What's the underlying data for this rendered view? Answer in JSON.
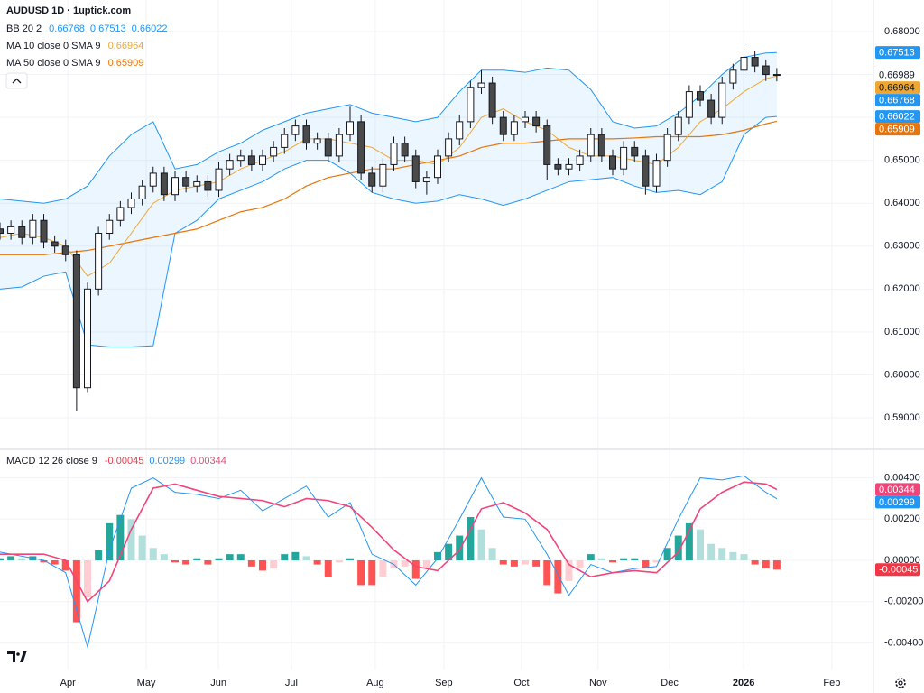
{
  "chart_data": {
    "type": "candlestick",
    "title": "AUDUSD 1D · 1uptick.com",
    "x": [
      0,
      3,
      6,
      9,
      12,
      15,
      18,
      21,
      24,
      27,
      30,
      33,
      36,
      39,
      42,
      45,
      48,
      51,
      54,
      57,
      60,
      63,
      66,
      69,
      72,
      75,
      78,
      81,
      84,
      87,
      90,
      93,
      96,
      99,
      102,
      105,
      108,
      111,
      114,
      117,
      120,
      123,
      126,
      129,
      132,
      135,
      138,
      141,
      144,
      147,
      150,
      153,
      156,
      159,
      162,
      165,
      168,
      171,
      174,
      177,
      180,
      183,
      186,
      189,
      192,
      195,
      198,
      201,
      204,
      207,
      210,
      213
    ],
    "open": [
      0.634,
      0.633,
      0.6345,
      0.632,
      0.636,
      0.631,
      0.63,
      0.628,
      0.597,
      0.62,
      0.633,
      0.636,
      0.639,
      0.641,
      0.644,
      0.647,
      0.642,
      0.646,
      0.644,
      0.645,
      0.643,
      0.648,
      0.65,
      0.651,
      0.649,
      0.651,
      0.653,
      0.656,
      0.658,
      0.654,
      0.655,
      0.651,
      0.656,
      0.659,
      0.647,
      0.644,
      0.649,
      0.654,
      0.651,
      0.645,
      0.646,
      0.651,
      0.655,
      0.659,
      0.667,
      0.668,
      0.66,
      0.656,
      0.659,
      0.66,
      0.658,
      0.649,
      0.648,
      0.649,
      0.651,
      0.656,
      0.651,
      0.648,
      0.653,
      0.651,
      0.644,
      0.65,
      0.656,
      0.66,
      0.666,
      0.664,
      0.66,
      0.668,
      0.671,
      0.674,
      0.672,
      0.67
    ],
    "high": [
      0.6355,
      0.636,
      0.636,
      0.6375,
      0.6375,
      0.6325,
      0.6315,
      0.629,
      0.6215,
      0.6345,
      0.6375,
      0.6405,
      0.6425,
      0.6455,
      0.6485,
      0.6485,
      0.6475,
      0.6475,
      0.6465,
      0.6465,
      0.6495,
      0.6515,
      0.6525,
      0.6525,
      0.6525,
      0.6545,
      0.6575,
      0.6595,
      0.6595,
      0.6565,
      0.6565,
      0.6575,
      0.6625,
      0.6605,
      0.6485,
      0.6505,
      0.6555,
      0.6555,
      0.6525,
      0.6475,
      0.6525,
      0.6565,
      0.6605,
      0.6685,
      0.671,
      0.6695,
      0.6615,
      0.6605,
      0.6615,
      0.6615,
      0.6595,
      0.6505,
      0.6505,
      0.6525,
      0.6575,
      0.6575,
      0.6525,
      0.6545,
      0.6545,
      0.6525,
      0.6515,
      0.6575,
      0.6615,
      0.6675,
      0.6675,
      0.6655,
      0.6695,
      0.6725,
      0.676,
      0.6755,
      0.6735,
      0.6715
    ],
    "low": [
      0.6315,
      0.6315,
      0.6305,
      0.6305,
      0.6295,
      0.6285,
      0.6265,
      0.5915,
      0.596,
      0.6185,
      0.6315,
      0.6345,
      0.6375,
      0.6395,
      0.6425,
      0.6405,
      0.6405,
      0.6425,
      0.6425,
      0.6415,
      0.6415,
      0.6465,
      0.6485,
      0.6475,
      0.6475,
      0.6495,
      0.6515,
      0.6545,
      0.6525,
      0.6525,
      0.6495,
      0.6495,
      0.6545,
      0.6455,
      0.6425,
      0.6425,
      0.6475,
      0.6495,
      0.6435,
      0.642,
      0.6445,
      0.6495,
      0.6535,
      0.6575,
      0.6655,
      0.6585,
      0.6545,
      0.6545,
      0.6575,
      0.6565,
      0.6455,
      0.6465,
      0.6465,
      0.6475,
      0.6495,
      0.6495,
      0.6465,
      0.6465,
      0.6495,
      0.642,
      0.6425,
      0.6485,
      0.6545,
      0.6585,
      0.6625,
      0.6585,
      0.6585,
      0.6665,
      0.6695,
      0.6705,
      0.6685,
      0.6684
    ],
    "close": [
      0.633,
      0.6345,
      0.632,
      0.636,
      0.631,
      0.63,
      0.628,
      0.597,
      0.62,
      0.633,
      0.636,
      0.639,
      0.641,
      0.644,
      0.647,
      0.642,
      0.646,
      0.644,
      0.645,
      0.643,
      0.648,
      0.65,
      0.651,
      0.649,
      0.651,
      0.653,
      0.656,
      0.658,
      0.654,
      0.655,
      0.651,
      0.656,
      0.659,
      0.647,
      0.644,
      0.649,
      0.654,
      0.651,
      0.645,
      0.646,
      0.651,
      0.655,
      0.659,
      0.667,
      0.668,
      0.66,
      0.656,
      0.659,
      0.66,
      0.658,
      0.649,
      0.648,
      0.649,
      0.651,
      0.656,
      0.651,
      0.648,
      0.653,
      0.651,
      0.644,
      0.65,
      0.656,
      0.66,
      0.666,
      0.664,
      0.66,
      0.668,
      0.671,
      0.674,
      0.672,
      0.67,
      0.6699
    ],
    "last_price": 0.66989,
    "xlim": [
      0,
      240
    ],
    "xticks": [
      {
        "value": 18.6,
        "label": "Apr"
      },
      {
        "value": 40.1,
        "label": "May"
      },
      {
        "value": 59.9,
        "label": "Jun"
      },
      {
        "value": 79.9,
        "label": "Jul"
      },
      {
        "value": 102.9,
        "label": "Aug"
      },
      {
        "value": 121.7,
        "label": "Sep"
      },
      {
        "value": 143,
        "label": "Oct"
      },
      {
        "value": 164,
        "label": "Nov"
      },
      {
        "value": 183.6,
        "label": "Dec"
      },
      {
        "value": 203.9,
        "label": "2026"
      },
      {
        "value": 228.1,
        "label": "Feb"
      }
    ],
    "ylim": [
      0.58285,
      0.68736
    ],
    "yticks": [
      {
        "value": 0.68,
        "label": "0.68000"
      },
      {
        "value": 0.67,
        "label": "0.67000"
      },
      {
        "value": 0.66,
        "label": "0.66000"
      },
      {
        "value": 0.65,
        "label": "0.65000"
      },
      {
        "value": 0.64,
        "label": "0.64000"
      },
      {
        "value": 0.63,
        "label": "0.63000"
      },
      {
        "value": 0.62,
        "label": "0.62000"
      },
      {
        "value": 0.61,
        "label": "0.61000"
      },
      {
        "value": 0.6,
        "label": "0.60000"
      },
      {
        "value": 0.59,
        "label": "0.59000"
      }
    ],
    "grid": true,
    "overlay_x": [
      0,
      6,
      12,
      18,
      24,
      30,
      36,
      42,
      48,
      54,
      60,
      66,
      72,
      78,
      84,
      90,
      96,
      102,
      108,
      114,
      120,
      126,
      132,
      138,
      144,
      150,
      156,
      162,
      168,
      174,
      180,
      186,
      192,
      198,
      204,
      210,
      213
    ],
    "indicators": [
      {
        "name": "BB 20 2",
        "color": "#2196f3",
        "legend_values": [
          0.66768,
          0.67513,
          0.66022
        ],
        "legend_colors": [
          "#2196f3",
          "#2196f3",
          "#2196f3"
        ],
        "upper": [
          0.641,
          0.6405,
          0.64,
          0.641,
          0.644,
          0.651,
          0.656,
          0.659,
          0.648,
          0.649,
          0.652,
          0.654,
          0.657,
          0.659,
          0.661,
          0.662,
          0.663,
          0.661,
          0.66,
          0.659,
          0.66,
          0.666,
          0.671,
          0.671,
          0.6705,
          0.6715,
          0.671,
          0.6665,
          0.659,
          0.6575,
          0.658,
          0.661,
          0.665,
          0.67,
          0.674,
          0.675,
          0.6751
        ],
        "lower": [
          0.62,
          0.6205,
          0.623,
          0.624,
          0.607,
          0.6065,
          0.6065,
          0.6068,
          0.633,
          0.636,
          0.641,
          0.643,
          0.645,
          0.648,
          0.65,
          0.65,
          0.647,
          0.6425,
          0.641,
          0.64,
          0.6405,
          0.642,
          0.641,
          0.6395,
          0.641,
          0.643,
          0.645,
          0.6455,
          0.646,
          0.644,
          0.6425,
          0.643,
          0.642,
          0.645,
          0.656,
          0.66,
          0.6602
        ]
      },
      {
        "name": "MA 10 close 0 SMA 9",
        "color": "#f0a732",
        "legend_values": [
          0.66964
        ],
        "legend_colors": [
          "#f0a732"
        ],
        "values": [
          0.632,
          0.633,
          0.632,
          0.63,
          0.623,
          0.626,
          0.633,
          0.64,
          0.643,
          0.644,
          0.645,
          0.648,
          0.65,
          0.652,
          0.655,
          0.655,
          0.654,
          0.653,
          0.65,
          0.65,
          0.649,
          0.653,
          0.66,
          0.662,
          0.659,
          0.657,
          0.653,
          0.651,
          0.651,
          0.65,
          0.649,
          0.653,
          0.659,
          0.662,
          0.666,
          0.669,
          0.66964
        ]
      },
      {
        "name": "MA 50 close 0 SMA 9",
        "color": "#e8750b",
        "legend_values": [
          0.65909
        ],
        "legend_colors": [
          "#e8750b"
        ],
        "values": [
          0.628,
          0.628,
          0.628,
          0.6285,
          0.629,
          0.63,
          0.631,
          0.632,
          0.633,
          0.634,
          0.636,
          0.638,
          0.639,
          0.641,
          0.644,
          0.646,
          0.647,
          0.648,
          0.648,
          0.649,
          0.65,
          0.651,
          0.653,
          0.654,
          0.654,
          0.6545,
          0.655,
          0.655,
          0.655,
          0.6552,
          0.6555,
          0.6555,
          0.6555,
          0.656,
          0.657,
          0.6585,
          0.65909
        ]
      }
    ],
    "macd": {
      "name": "MACD 12 26 close 9",
      "legend_values": [
        -0.00045,
        0.00299,
        0.00344
      ],
      "legend_colors": [
        "#f23645",
        "#2196f3",
        "#f0457a"
      ],
      "ylim": [
        -0.005208,
        0.005295
      ],
      "yticks": [
        {
          "value": 0.004,
          "label": "0.00400"
        },
        {
          "value": 0.002,
          "label": "0.00200"
        },
        {
          "value": 0,
          "label": "0.00000"
        },
        {
          "value": -0.002,
          "label": "-0.00200"
        },
        {
          "value": -0.004,
          "label": "-0.00400"
        }
      ],
      "histogram": [
        0.0001,
        0.0002,
        0.0001,
        0.0002,
        -0.0001,
        -0.0002,
        -0.0005,
        -0.003,
        -0.0018,
        0.0005,
        0.0018,
        0.0022,
        0.002,
        0.0012,
        0.0006,
        0.0003,
        -0.0001,
        -0.0002,
        0.0001,
        -0.0002,
        0.0001,
        0.0003,
        0.0003,
        -0.0003,
        -0.0005,
        -0.0004,
        0.0003,
        0.0004,
        0.0002,
        -0.0002,
        -0.0008,
        -0.0001,
        0.0001,
        -0.0012,
        -0.0012,
        -0.0008,
        -0.0004,
        -0.0003,
        -0.0009,
        -0.0004,
        0.0004,
        0.0008,
        0.0012,
        0.0021,
        0.0015,
        0.0006,
        -0.0002,
        -0.0003,
        -0.0002,
        -0.0003,
        -0.0012,
        -0.0016,
        -0.001,
        -0.0004,
        0.0003,
        0.0001,
        -0.0001,
        0.0001,
        0.0001,
        -0.0004,
        -0.0001,
        0.0006,
        0.0012,
        0.0018,
        0.0015,
        0.0008,
        0.0006,
        0.0004,
        0.0003,
        -0.0002,
        -0.0004,
        -0.00045
      ],
      "macd_color": "#2196f3",
      "macd": [
        0.0004,
        0.0002,
        0.0,
        -0.0006,
        -0.0042,
        0.0005,
        0.0035,
        0.004,
        0.0033,
        0.0032,
        0.003,
        0.0034,
        0.0024,
        0.003,
        0.0036,
        0.0021,
        0.0028,
        0.0003,
        -0.0002,
        -0.0012,
        0.0001,
        0.002,
        0.004,
        0.0021,
        0.002,
        0.0003,
        -0.0017,
        -0.0002,
        -0.0006,
        -0.0004,
        -0.0003,
        0.002,
        0.004,
        0.0039,
        0.0041,
        0.0033,
        0.00299
      ],
      "signal_color": "#f0457a",
      "signal": [
        0.0003,
        0.0003,
        0.0003,
        0.0,
        -0.002,
        -0.001,
        0.0015,
        0.0035,
        0.0037,
        0.0034,
        0.0031,
        0.003,
        0.0029,
        0.0026,
        0.003,
        0.0029,
        0.0026,
        0.0016,
        0.0005,
        -0.0003,
        -0.0005,
        0.0005,
        0.0025,
        0.0028,
        0.0023,
        0.0015,
        -0.0002,
        -0.0008,
        -0.0006,
        -0.0005,
        -0.0006,
        0.0004,
        0.0025,
        0.0033,
        0.0038,
        0.0037,
        0.00344
      ]
    }
  }
}
